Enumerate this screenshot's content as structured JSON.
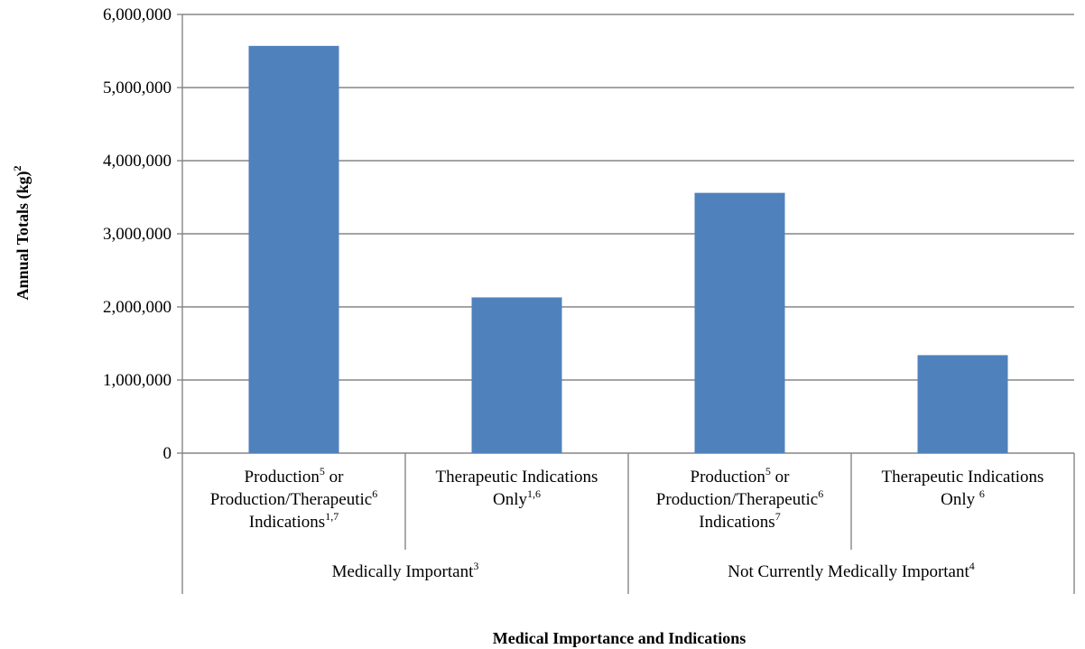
{
  "chart_data": {
    "type": "bar",
    "title": "",
    "xlabel": "Medical Importance and Indications",
    "ylabel": {
      "text": "Annual Totals (kg)",
      "sup": "2"
    },
    "ylim": [
      0,
      6000000
    ],
    "yticks": [
      {
        "value": 0,
        "label": "0"
      },
      {
        "value": 1000000,
        "label": "1,000,000"
      },
      {
        "value": 2000000,
        "label": "2,000,000"
      },
      {
        "value": 3000000,
        "label": "3,000,000"
      },
      {
        "value": 4000000,
        "label": "4,000,000"
      },
      {
        "value": 5000000,
        "label": "5,000,000"
      },
      {
        "value": 6000000,
        "label": "6,000,000"
      }
    ],
    "grid": true,
    "legend": "none",
    "bar_color": "#4F81BD",
    "groups": [
      {
        "label": [
          {
            "t": "Medically Important"
          },
          {
            "t": "3",
            "sup": true
          }
        ]
      },
      {
        "label": [
          {
            "t": "Not Currently Medically Important"
          },
          {
            "t": "4",
            "sup": true
          }
        ]
      }
    ],
    "categories": [
      {
        "group": 0,
        "value": 5570000,
        "lines": [
          [
            {
              "t": "Production"
            },
            {
              "t": "5",
              "sup": true
            },
            {
              "t": " or"
            }
          ],
          [
            {
              "t": "Production/Therapeutic"
            },
            {
              "t": "6",
              "sup": true
            }
          ],
          [
            {
              "t": "Indications"
            },
            {
              "t": "1,7",
              "sup": true
            }
          ]
        ]
      },
      {
        "group": 0,
        "value": 2130000,
        "lines": [
          [
            {
              "t": "Therapeutic Indications"
            }
          ],
          [
            {
              "t": "Only"
            },
            {
              "t": "1,6",
              "sup": true
            }
          ]
        ]
      },
      {
        "group": 1,
        "value": 3560000,
        "lines": [
          [
            {
              "t": "Production"
            },
            {
              "t": "5",
              "sup": true
            },
            {
              "t": " or"
            }
          ],
          [
            {
              "t": "Production/Therapeutic"
            },
            {
              "t": "6",
              "sup": true
            }
          ],
          [
            {
              "t": "Indications"
            },
            {
              "t": "7",
              "sup": true
            }
          ]
        ]
      },
      {
        "group": 1,
        "value": 1340000,
        "lines": [
          [
            {
              "t": "Therapeutic Indications"
            }
          ],
          [
            {
              "t": "Only "
            },
            {
              "t": "6",
              "sup": true
            }
          ]
        ]
      }
    ]
  }
}
